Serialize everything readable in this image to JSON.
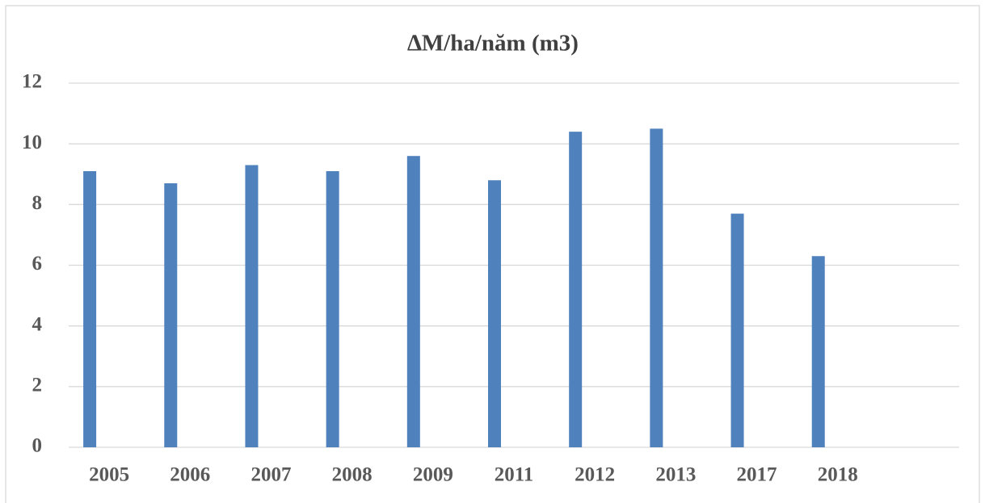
{
  "chart_data": {
    "type": "bar",
    "title": "∆M/ha/năm (m3)",
    "categories": [
      "2005",
      "2006",
      "2007",
      "2008",
      "2009",
      "2011",
      "2012",
      "2013",
      "2017",
      "2018",
      null
    ],
    "values": [
      9.1,
      8.7,
      9.3,
      9.1,
      9.6,
      8.8,
      10.4,
      10.5,
      7.7,
      6.3,
      null
    ],
    "color": "#4f81bd",
    "ylim": [
      0,
      12
    ],
    "yticks": [
      0,
      2,
      4,
      6,
      8,
      10,
      12
    ],
    "grid": true
  }
}
